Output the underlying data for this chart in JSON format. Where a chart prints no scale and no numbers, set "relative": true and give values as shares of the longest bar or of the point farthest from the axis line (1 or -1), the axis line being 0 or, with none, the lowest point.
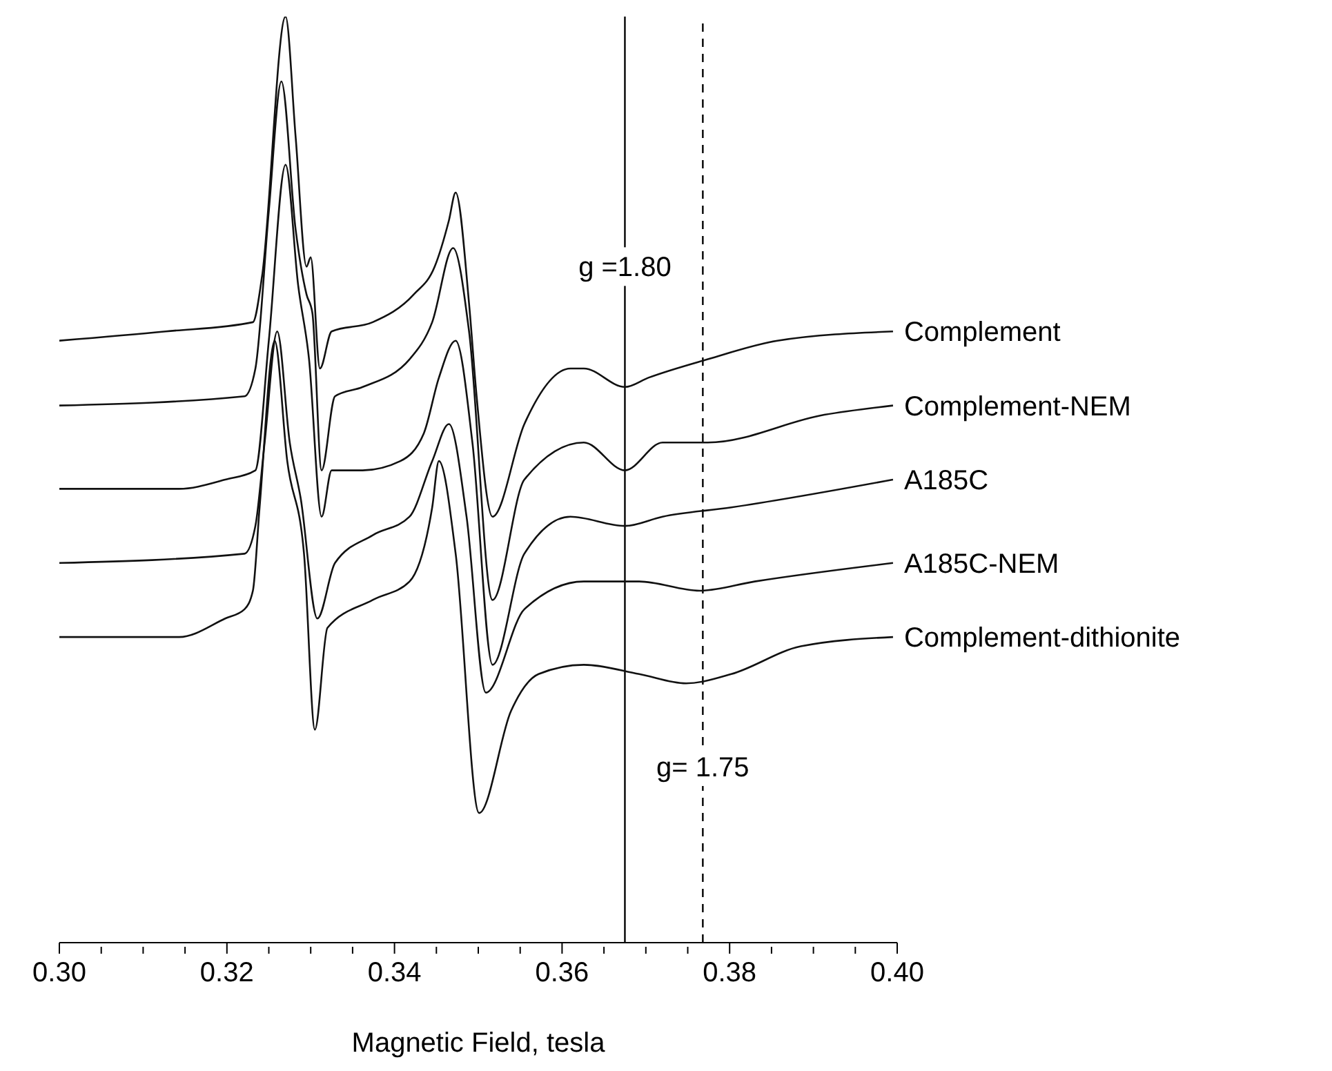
{
  "chart_data": {
    "type": "line",
    "xlabel": "Magnetic Field, tesla",
    "relative": true,
    "tick_labels": "x",
    "legend": false,
    "grid": false,
    "marker": "none",
    "line_style": "solid",
    "xlim": [
      0.3,
      0.4
    ],
    "xticks": [
      {
        "value": 0.3,
        "label": "0.30"
      },
      {
        "value": 0.305,
        "label": null
      },
      {
        "value": 0.31,
        "label": null
      },
      {
        "value": 0.315,
        "label": null
      },
      {
        "value": 0.32,
        "label": "0.32"
      },
      {
        "value": 0.325,
        "label": null
      },
      {
        "value": 0.33,
        "label": null
      },
      {
        "value": 0.335,
        "label": null
      },
      {
        "value": 0.34,
        "label": "0.34"
      },
      {
        "value": 0.345,
        "label": null
      },
      {
        "value": 0.35,
        "label": null
      },
      {
        "value": 0.355,
        "label": null
      },
      {
        "value": 0.36,
        "label": "0.36"
      },
      {
        "value": 0.365,
        "label": null
      },
      {
        "value": 0.37,
        "label": null
      },
      {
        "value": 0.375,
        "label": null
      },
      {
        "value": 0.38,
        "label": "0.38"
      },
      {
        "value": 0.385,
        "label": null
      },
      {
        "value": 0.39,
        "label": null
      },
      {
        "value": 0.395,
        "label": null
      },
      {
        "value": 0.4,
        "label": "0.40"
      }
    ],
    "ref_lines": [
      {
        "axis": "x",
        "value": 0.3675,
        "color": "#000000",
        "line_style": "solid"
      },
      {
        "axis": "x",
        "value": 0.3768,
        "color": "#000000",
        "line_style": "dashed"
      }
    ],
    "annotations": [
      {
        "text": "g =1.80",
        "x": 0.3675,
        "y": 0.73
      },
      {
        "text": "g= 1.75",
        "x": 0.3768,
        "y": 0.19
      }
    ],
    "series": [
      {
        "name": "Complement",
        "color": "#111111",
        "x": [
          0.3,
          0.3127,
          0.3231,
          0.3242,
          0.327,
          0.3282,
          0.3295,
          0.33,
          0.3311,
          0.3325,
          0.3374,
          0.3423,
          0.3448,
          0.3465,
          0.3473,
          0.3489,
          0.3498,
          0.3517,
          0.3555,
          0.361,
          0.3626,
          0.3675,
          0.3703,
          0.3774,
          0.3857,
          0.3995
        ],
        "values": [
          0.65,
          0.66,
          0.67,
          0.72,
          1.0,
          0.87,
          0.73,
          0.74,
          0.62,
          0.66,
          0.67,
          0.7,
          0.73,
          0.78,
          0.81,
          0.69,
          0.59,
          0.46,
          0.56,
          0.62,
          0.62,
          0.6,
          0.61,
          0.63,
          0.65,
          0.66
        ]
      },
      {
        "name": "Complement-NEM",
        "color": "#111111",
        "x": [
          0.3,
          0.3221,
          0.3234,
          0.325,
          0.3265,
          0.3282,
          0.3295,
          0.3302,
          0.3313,
          0.3329,
          0.3362,
          0.3418,
          0.3445,
          0.347,
          0.3489,
          0.3517,
          0.3555,
          0.3626,
          0.3675,
          0.372,
          0.3774,
          0.3913,
          0.3995
        ],
        "values": [
          0.58,
          0.59,
          0.62,
          0.79,
          0.93,
          0.77,
          0.7,
          0.68,
          0.51,
          0.59,
          0.6,
          0.63,
          0.67,
          0.75,
          0.66,
          0.37,
          0.5,
          0.54,
          0.51,
          0.54,
          0.54,
          0.57,
          0.58
        ]
      },
      {
        "name": "A185C",
        "color": "#111111",
        "x": [
          0.3,
          0.3143,
          0.3198,
          0.3234,
          0.325,
          0.327,
          0.3285,
          0.3298,
          0.3313,
          0.3325,
          0.3362,
          0.3407,
          0.3435,
          0.3453,
          0.3473,
          0.3493,
          0.3517,
          0.3555,
          0.361,
          0.3675,
          0.372,
          0.3802,
          0.3995
        ],
        "values": [
          0.49,
          0.49,
          0.5,
          0.51,
          0.65,
          0.84,
          0.71,
          0.63,
          0.46,
          0.51,
          0.51,
          0.52,
          0.55,
          0.61,
          0.65,
          0.54,
          0.3,
          0.42,
          0.46,
          0.45,
          0.46,
          0.47,
          0.5
        ]
      },
      {
        "name": "A185C-NEM",
        "color": "#111111",
        "x": [
          0.3,
          0.3221,
          0.3234,
          0.3245,
          0.326,
          0.3275,
          0.3288,
          0.3308,
          0.3329,
          0.3374,
          0.3418,
          0.3445,
          0.3465,
          0.3486,
          0.3509,
          0.3555,
          0.3626,
          0.3692,
          0.3764,
          0.383,
          0.3995
        ],
        "values": [
          0.41,
          0.42,
          0.45,
          0.54,
          0.66,
          0.54,
          0.48,
          0.35,
          0.41,
          0.44,
          0.46,
          0.52,
          0.56,
          0.46,
          0.27,
          0.36,
          0.39,
          0.39,
          0.38,
          0.39,
          0.41
        ]
      },
      {
        "name": "Complement-dithionite",
        "color": "#111111",
        "x": [
          0.3,
          0.3143,
          0.3198,
          0.3221,
          0.3231,
          0.3239,
          0.3257,
          0.3272,
          0.3292,
          0.3305,
          0.332,
          0.3374,
          0.3418,
          0.3445,
          0.3453,
          0.3473,
          0.3501,
          0.3539,
          0.3572,
          0.3626,
          0.3692,
          0.3748,
          0.3802,
          0.3885,
          0.3995
        ],
        "values": [
          0.33,
          0.33,
          0.35,
          0.36,
          0.38,
          0.47,
          0.65,
          0.52,
          0.42,
          0.23,
          0.34,
          0.37,
          0.39,
          0.47,
          0.52,
          0.42,
          0.14,
          0.25,
          0.29,
          0.3,
          0.29,
          0.28,
          0.29,
          0.32,
          0.33
        ]
      }
    ]
  }
}
